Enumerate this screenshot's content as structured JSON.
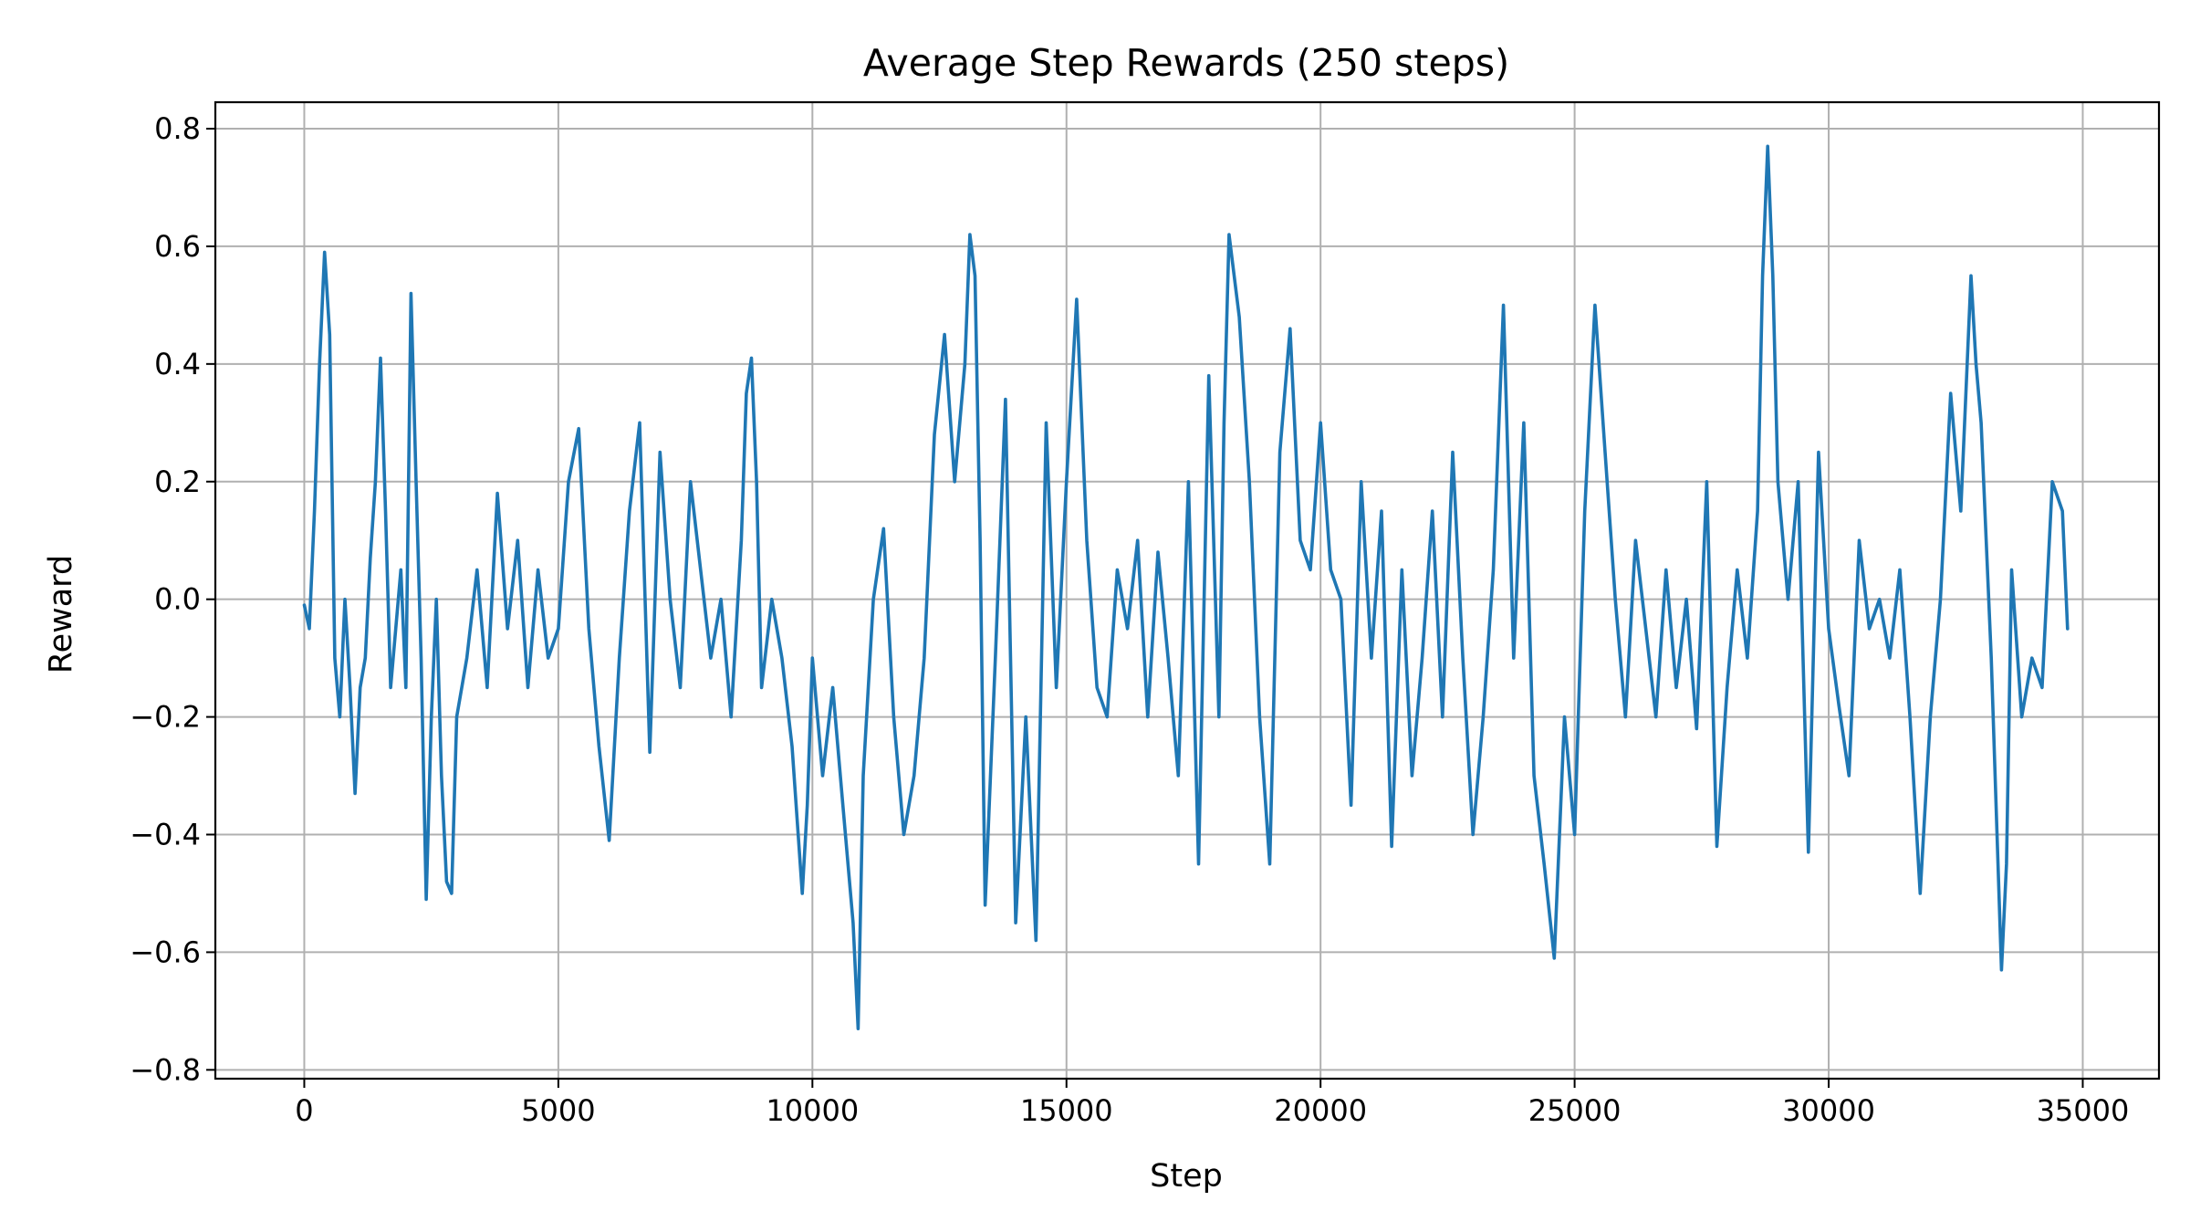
{
  "chart_data": {
    "type": "line",
    "title": "Average Step Rewards (250 steps)",
    "xlabel": "Step",
    "ylabel": "Reward",
    "xlim": [
      -1750,
      36500
    ],
    "ylim": [
      -0.815,
      0.845
    ],
    "xticks": [
      0,
      5000,
      10000,
      15000,
      20000,
      25000,
      30000,
      35000
    ],
    "xtick_labels": [
      "0",
      "5000",
      "10000",
      "15000",
      "20000",
      "25000",
      "30000",
      "35000"
    ],
    "yticks": [
      -0.8,
      -0.6,
      -0.4,
      -0.2,
      0.0,
      0.2,
      0.4,
      0.6,
      0.8
    ],
    "ytick_labels": [
      "−0.8",
      "−0.6",
      "−0.4",
      "−0.2",
      "0.0",
      "0.2",
      "0.4",
      "0.6",
      "0.8"
    ],
    "grid": true,
    "series": [
      {
        "color": "#1f77b4",
        "x": [
          0,
          100,
          200,
          300,
          400,
          500,
          600,
          700,
          800,
          900,
          1000,
          1100,
          1200,
          1300,
          1400,
          1500,
          1600,
          1700,
          1800,
          1900,
          2000,
          2100,
          2200,
          2300,
          2400,
          2500,
          2600,
          2700,
          2800,
          2900,
          3000,
          3200,
          3400,
          3600,
          3800,
          4000,
          4200,
          4400,
          4600,
          4800,
          5000,
          5200,
          5400,
          5600,
          5800,
          6000,
          6200,
          6400,
          6600,
          6800,
          7000,
          7200,
          7400,
          7600,
          7800,
          8000,
          8200,
          8400,
          8600,
          8700,
          8800,
          8900,
          9000,
          9200,
          9400,
          9600,
          9800,
          9900,
          10000,
          10200,
          10400,
          10600,
          10800,
          10900,
          11000,
          11200,
          11400,
          11600,
          11800,
          12000,
          12200,
          12400,
          12600,
          12800,
          13000,
          13100,
          13200,
          13300,
          13400,
          13600,
          13800,
          14000,
          14200,
          14400,
          14600,
          14800,
          15000,
          15200,
          15400,
          15600,
          15800,
          16000,
          16200,
          16400,
          16600,
          16800,
          17000,
          17200,
          17400,
          17600,
          17800,
          18000,
          18100,
          18200,
          18400,
          18600,
          18800,
          19000,
          19200,
          19400,
          19600,
          19800,
          20000,
          20200,
          20400,
          20600,
          20800,
          21000,
          21200,
          21400,
          21600,
          21800,
          22000,
          22200,
          22400,
          22600,
          22800,
          23000,
          23200,
          23400,
          23600,
          23800,
          24000,
          24200,
          24400,
          24600,
          24800,
          25000,
          25200,
          25400,
          25600,
          25800,
          26000,
          26200,
          26400,
          26600,
          26800,
          27000,
          27200,
          27400,
          27600,
          27800,
          28000,
          28200,
          28400,
          28600,
          28700,
          28800,
          28900,
          29000,
          29200,
          29400,
          29600,
          29800,
          30000,
          30200,
          30400,
          30600,
          30800,
          31000,
          31200,
          31400,
          31600,
          31800,
          32000,
          32200,
          32400,
          32600,
          32800,
          32900,
          33000,
          33200,
          33400,
          33500,
          33600,
          33800,
          34000,
          34200,
          34400,
          34600,
          34700
        ],
        "y": [
          -0.01,
          -0.05,
          0.15,
          0.4,
          0.59,
          0.45,
          -0.1,
          -0.2,
          0.0,
          -0.15,
          -0.33,
          -0.15,
          -0.1,
          0.07,
          0.2,
          0.41,
          0.15,
          -0.15,
          -0.05,
          0.05,
          -0.15,
          0.52,
          0.2,
          -0.1,
          -0.51,
          -0.2,
          0.0,
          -0.3,
          -0.48,
          -0.5,
          -0.2,
          -0.1,
          0.05,
          -0.15,
          0.18,
          -0.05,
          0.1,
          -0.15,
          0.05,
          -0.1,
          -0.05,
          0.2,
          0.29,
          -0.05,
          -0.25,
          -0.41,
          -0.1,
          0.15,
          0.3,
          -0.26,
          0.25,
          0.0,
          -0.15,
          0.2,
          0.05,
          -0.1,
          0.0,
          -0.2,
          0.1,
          0.35,
          0.41,
          0.2,
          -0.15,
          0.0,
          -0.1,
          -0.25,
          -0.5,
          -0.35,
          -0.1,
          -0.3,
          -0.15,
          -0.35,
          -0.55,
          -0.73,
          -0.3,
          0.0,
          0.12,
          -0.2,
          -0.4,
          -0.3,
          -0.1,
          0.28,
          0.45,
          0.2,
          0.4,
          0.62,
          0.55,
          0.1,
          -0.52,
          -0.1,
          0.34,
          -0.55,
          -0.2,
          -0.58,
          0.3,
          -0.15,
          0.2,
          0.51,
          0.1,
          -0.15,
          -0.2,
          0.05,
          -0.05,
          0.1,
          -0.2,
          0.08,
          -0.1,
          -0.3,
          0.2,
          -0.45,
          0.38,
          -0.2,
          0.3,
          0.62,
          0.48,
          0.2,
          -0.2,
          -0.45,
          0.25,
          0.46,
          0.1,
          0.05,
          0.3,
          0.05,
          0.0,
          -0.35,
          0.2,
          -0.1,
          0.15,
          -0.42,
          0.05,
          -0.3,
          -0.1,
          0.15,
          -0.2,
          0.25,
          -0.1,
          -0.4,
          -0.2,
          0.05,
          0.5,
          -0.1,
          0.3,
          -0.3,
          -0.45,
          -0.61,
          -0.2,
          -0.4,
          0.15,
          0.5,
          0.25,
          0.0,
          -0.2,
          0.1,
          -0.05,
          -0.2,
          0.05,
          -0.15,
          0.0,
          -0.22,
          0.2,
          -0.42,
          -0.15,
          0.05,
          -0.1,
          0.15,
          0.55,
          0.77,
          0.55,
          0.2,
          0.0,
          0.2,
          -0.43,
          0.25,
          -0.05,
          -0.18,
          -0.3,
          0.1,
          -0.05,
          0.0,
          -0.1,
          0.05,
          -0.2,
          -0.5,
          -0.2,
          0.0,
          0.35,
          0.15,
          0.55,
          0.4,
          0.3,
          -0.1,
          -0.63,
          -0.45,
          0.05,
          -0.2,
          -0.1,
          -0.15,
          0.2,
          0.15,
          -0.05
        ]
      }
    ]
  }
}
